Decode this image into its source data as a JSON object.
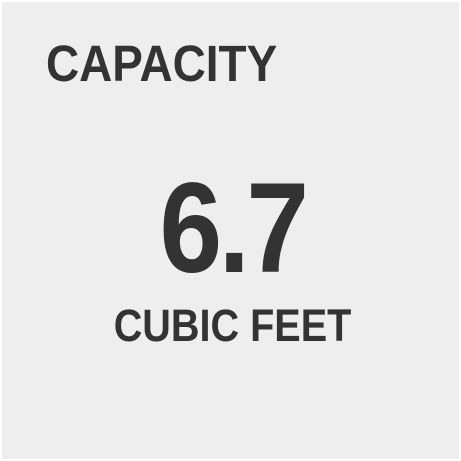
{
  "spec": {
    "heading": "CAPACITY",
    "value": "6.7",
    "unit": "CUBIC FEET"
  },
  "colors": {
    "background": "#eeeeee",
    "text": "#333333"
  }
}
